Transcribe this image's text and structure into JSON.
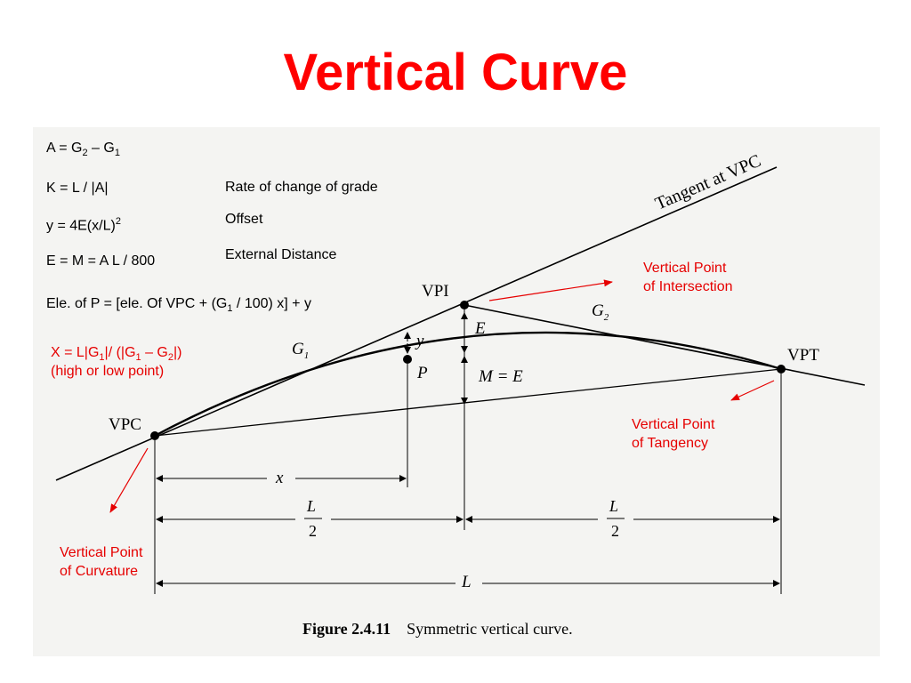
{
  "slide": {
    "title": "Vertical Curve"
  },
  "formulas": {
    "a": {
      "pre": "A = G",
      "s1": "2",
      "mid": " – G",
      "s2": "1"
    },
    "k": "K = L / |A|",
    "y": {
      "pre": "y = 4E(x/L)",
      "sup": "2"
    },
    "e": "E = M = A L / 800",
    "ele": {
      "pre": "Ele. of P = [ele. Of VPC + (G",
      "s1": "1",
      "post": " / 100) x] + y"
    },
    "x": {
      "pre": "X = L|G",
      "s1": "1",
      "mid1": "|/ (|G",
      "s2": "1",
      "mid2": " – G",
      "s3": "2",
      "post": "|)"
    },
    "x_note": "(high or low point)"
  },
  "descriptions": {
    "k": "Rate of change of grade",
    "y": "Offset",
    "e": "External Distance"
  },
  "callouts": {
    "vpi": {
      "line1": "Vertical Point",
      "line2": "of Intersection"
    },
    "vpt": {
      "line1": "Vertical Point",
      "line2": "of Tangency"
    },
    "vpc": {
      "line1": "Vertical Point",
      "line2": "of Curvature"
    }
  },
  "figure": {
    "tangent_label": "Tangent at VPC",
    "vpi": "VPI",
    "vpc": "VPC",
    "vpt": "VPT",
    "g1": {
      "base": "G",
      "sub": "1"
    },
    "g2": {
      "base": "G",
      "sub": "2"
    },
    "e": "E",
    "y": "y",
    "p": "P",
    "m_eq_e": "M = E",
    "x": "x",
    "l_half": {
      "num": "L",
      "den": "2"
    },
    "l": "L",
    "caption_bold": "Figure 2.4.11",
    "caption": "Symmetric vertical curve."
  },
  "colors": {
    "title": "#ff0000",
    "annotation": "#e60000"
  }
}
